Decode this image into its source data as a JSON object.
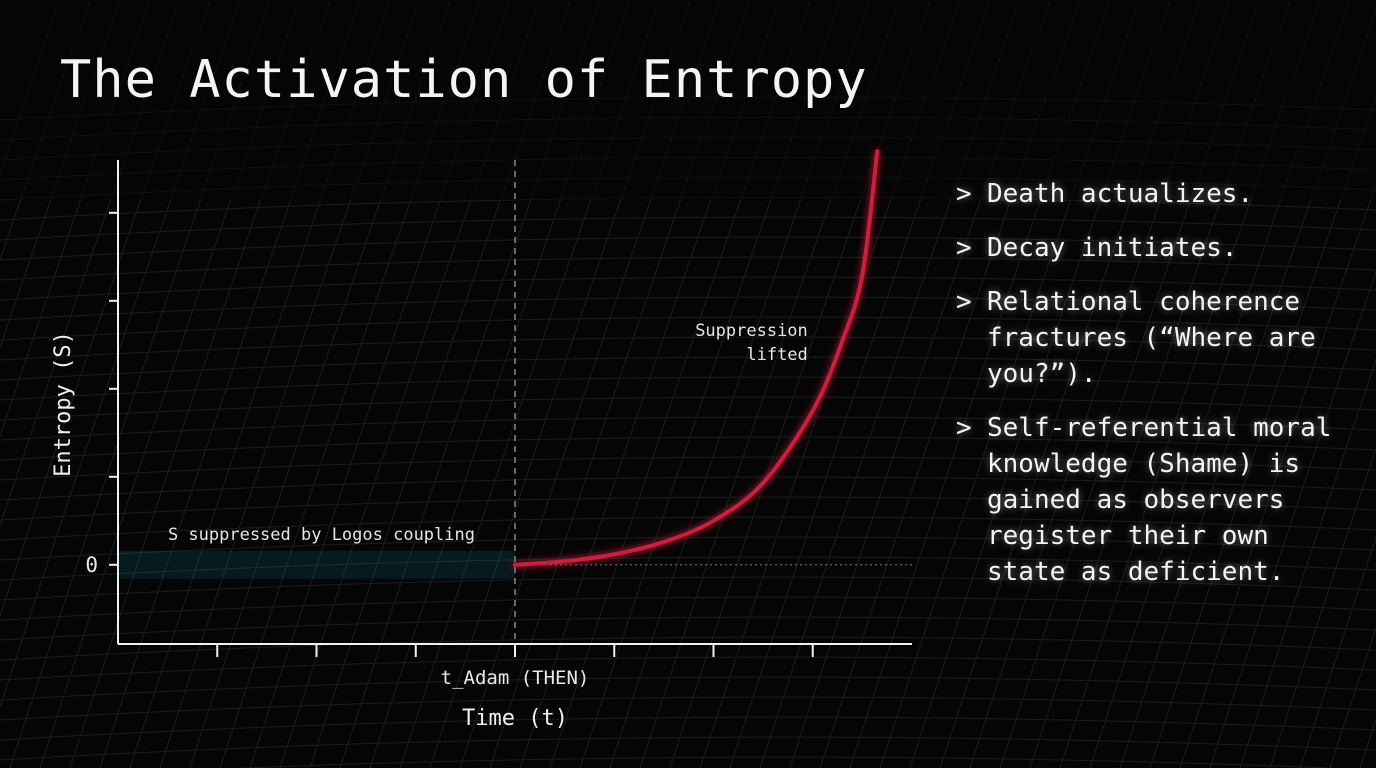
{
  "title": "The Activation of Entropy",
  "chart_data": {
    "type": "line",
    "xlabel": "Time (t)",
    "ylabel": "Entropy (S)",
    "x_tick_label": "t_Adam (THEN)",
    "x_tick_label_value": 0,
    "x_ticks": [
      -3,
      -2,
      -1,
      0,
      1,
      2,
      3
    ],
    "xlim": [
      -4,
      4
    ],
    "ylim": [
      -0.9,
      4.6
    ],
    "y_ticks": [
      0,
      1,
      2,
      3,
      4
    ],
    "y_tick_labels": [
      "0"
    ],
    "series": [
      {
        "color": "#22d3ee",
        "x": [
          -4,
          -3,
          -2,
          -1,
          0
        ],
        "y": [
          0,
          0,
          0,
          0,
          0
        ]
      },
      {
        "color": "#d01c3c",
        "x": [
          0,
          0.5,
          1,
          1.5,
          2,
          2.5,
          3,
          3.3,
          3.5,
          3.65
        ],
        "y": [
          0,
          0.04,
          0.12,
          0.26,
          0.5,
          0.93,
          1.75,
          2.55,
          3.3,
          4.7
        ]
      }
    ],
    "vline_x": 0,
    "zero_reference_line": true,
    "annotations": [
      {
        "text": "S suppressed by Logos coupling",
        "x": -1.95,
        "y": 0.28
      },
      {
        "text": "Suppression lifted",
        "lines": [
          "Suppression",
          "lifted"
        ],
        "x": 2.95,
        "y": 2.6
      }
    ],
    "colors": {
      "background": "#050505",
      "axis": "#f0f0f0",
      "suppressed": "#22d3ee",
      "activated": "#d01c3c",
      "divider": "#8a8a8a"
    }
  },
  "bullets": [
    {
      "marker": ">",
      "text": "Death actualizes."
    },
    {
      "marker": ">",
      "text": "Decay initiates."
    },
    {
      "marker": ">",
      "text": "Relational coherence fractures (“Where are you?”)."
    },
    {
      "marker": ">",
      "text": "Self-referential moral knowledge (Shame) is gained as observers register their own state as deficient."
    }
  ]
}
